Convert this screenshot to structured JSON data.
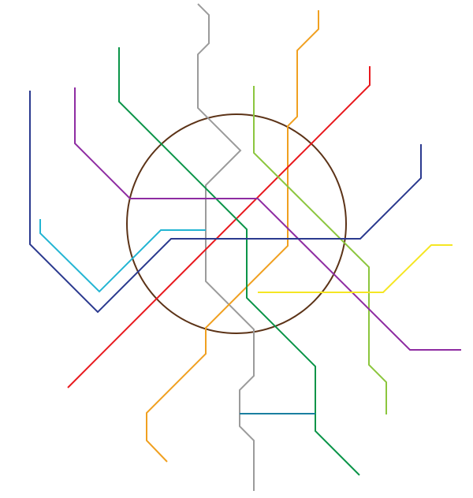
{
  "map": {
    "type": "metro-schematic",
    "labels": [],
    "ring_color": "#5c3317",
    "lines": [
      {
        "id": "line-grey",
        "color": "#9b9b9b"
      },
      {
        "id": "line-orange",
        "color": "#f0a020"
      },
      {
        "id": "line-red",
        "color": "#e8191e"
      },
      {
        "id": "line-green",
        "color": "#0a9448"
      },
      {
        "id": "line-lime",
        "color": "#8cc63e"
      },
      {
        "id": "line-violet",
        "color": "#8e2ca2"
      },
      {
        "id": "line-navy",
        "color": "#2b3a8f"
      },
      {
        "id": "line-cyan",
        "color": "#23b5d3"
      },
      {
        "id": "line-yellow",
        "color": "#f5e623"
      },
      {
        "id": "line-teal",
        "color": "#1a7fa0"
      }
    ]
  }
}
